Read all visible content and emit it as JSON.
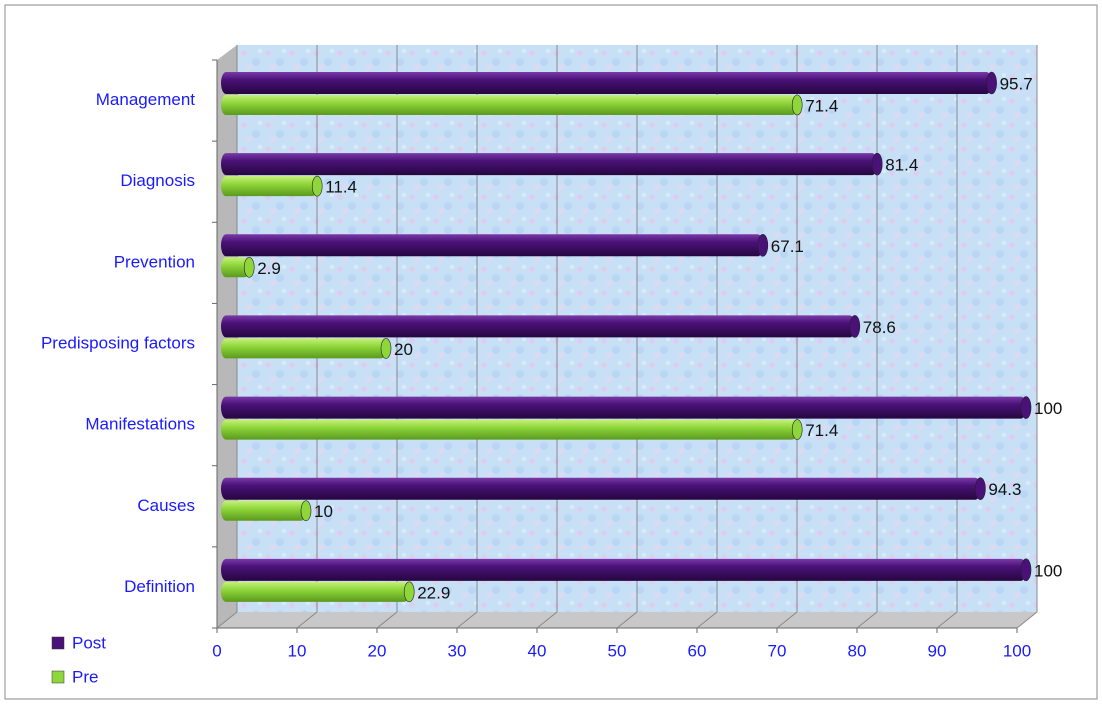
{
  "chart_data": {
    "type": "bar",
    "orientation": "horizontal",
    "categories": [
      "Management",
      "Diagnosis",
      "Prevention",
      "Predisposing factors",
      "Manifestations",
      "Causes",
      "Definition"
    ],
    "series": [
      {
        "name": "Post",
        "color": "#4a1278",
        "values": [
          95.7,
          81.4,
          67.1,
          78.6,
          100,
          94.3,
          100
        ]
      },
      {
        "name": "Pre",
        "color": "#8fd63a",
        "values": [
          71.4,
          11.4,
          2.9,
          20,
          71.4,
          10,
          22.9
        ]
      }
    ],
    "xlim": [
      0,
      100
    ],
    "xticks": [
      0,
      10,
      20,
      30,
      40,
      50,
      60,
      70,
      80,
      90,
      100
    ],
    "grid": true,
    "legend": "bottom-left"
  }
}
